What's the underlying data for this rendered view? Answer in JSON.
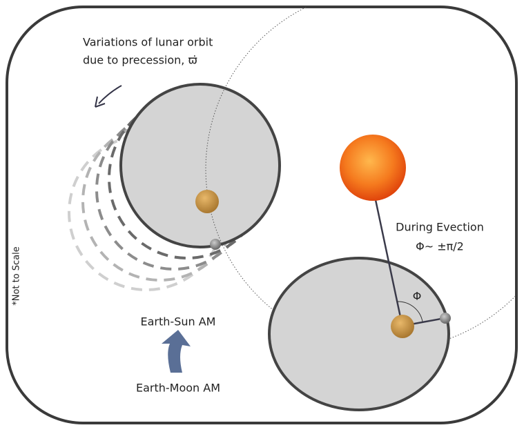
{
  "title_lines": [
    "Variations of lunar orbit",
    "due to precession, ϖ̇"
  ],
  "evection": {
    "title": "During Evection",
    "condition": "Φ~ ±π/2",
    "angle_label": "Φ"
  },
  "arrow_labels": {
    "top": "Earth-Sun AM",
    "bottom": "Earth-Moon AM"
  },
  "note": "*Not to Scale"
}
